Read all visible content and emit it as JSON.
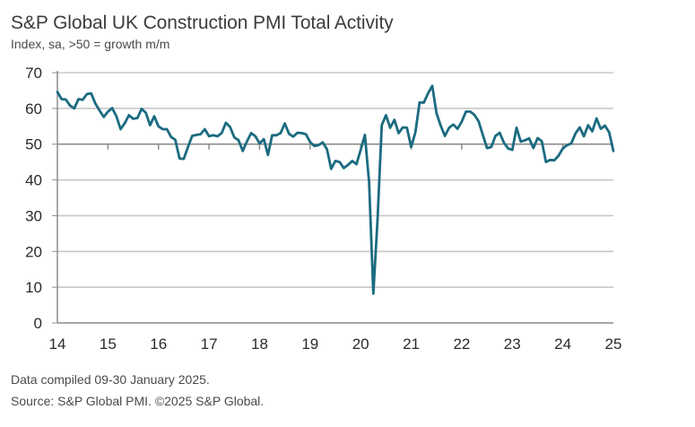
{
  "header": {
    "title": "S&P Global UK Construction PMI Total Activity",
    "subtitle": "Index, sa, >50 = growth m/m"
  },
  "footer": {
    "compiled": "Data compiled 09-30 January 2025.",
    "source": "Source: S&P Global PMI. ©2025 S&P Global."
  },
  "colors": {
    "line": "#1b6b80",
    "grid": "#c8c8c8",
    "axis": "#8c8c8c",
    "reference": "#8c8c8c"
  },
  "chart_data": {
    "type": "line",
    "title": "S&P Global UK Construction PMI Total Activity",
    "subtitle": "Index, sa, >50 = growth m/m",
    "xlabel": "",
    "ylabel": "",
    "ylim": [
      0,
      70
    ],
    "yticks": [
      0,
      10,
      20,
      30,
      40,
      50,
      60,
      70
    ],
    "ytick_labels": [
      "0",
      "10",
      "20",
      "30",
      "40",
      "50",
      "60",
      "70"
    ],
    "xlim": [
      "2014-01",
      "2025-01"
    ],
    "xticks": [
      "14",
      "15",
      "16",
      "17",
      "18",
      "19",
      "20",
      "21",
      "22",
      "23",
      "24",
      "25"
    ],
    "grid": "horizontal",
    "reference_line": 50,
    "legend": "none",
    "series": [
      {
        "name": "UK Construction PMI Total Activity",
        "start": "2014-01",
        "frequency": "monthly",
        "values": [
          64.6,
          62.6,
          62.5,
          60.8,
          60.0,
          62.6,
          62.4,
          64.0,
          64.2,
          61.4,
          59.4,
          57.6,
          59.1,
          60.1,
          57.8,
          54.2,
          55.9,
          58.1,
          57.1,
          57.3,
          59.9,
          58.8,
          55.3,
          57.8,
          55.0,
          54.2,
          54.2,
          52.0,
          51.2,
          46.0,
          45.9,
          49.2,
          52.3,
          52.6,
          52.8,
          54.2,
          52.2,
          52.5,
          52.2,
          53.1,
          56.0,
          54.8,
          51.9,
          51.1,
          48.1,
          50.8,
          53.1,
          52.2,
          50.2,
          51.4,
          47.0,
          52.5,
          52.5,
          53.1,
          55.8,
          52.9,
          52.1,
          53.2,
          53.1,
          52.8,
          50.6,
          49.5,
          49.7,
          50.5,
          48.6,
          43.1,
          45.3,
          45.0,
          43.3,
          44.2,
          45.3,
          44.4,
          48.4,
          52.6,
          39.3,
          8.2,
          28.9,
          55.3,
          58.1,
          54.6,
          56.8,
          53.1,
          54.7,
          54.6,
          49.2,
          53.3,
          61.7,
          61.6,
          64.2,
          66.3,
          58.7,
          55.2,
          52.3,
          54.6,
          55.5,
          54.3,
          56.3,
          59.1,
          59.1,
          58.2,
          56.4,
          52.6,
          48.9,
          49.2,
          52.3,
          53.2,
          50.4,
          48.8,
          48.4,
          54.6,
          50.7,
          51.1,
          51.6,
          48.9,
          51.7,
          50.8,
          45.0,
          45.6,
          45.5,
          46.8,
          48.8,
          49.7,
          50.2,
          53.0,
          54.7,
          52.2,
          55.3,
          53.6,
          57.2,
          54.3,
          55.2,
          53.3,
          48.1
        ]
      }
    ]
  }
}
